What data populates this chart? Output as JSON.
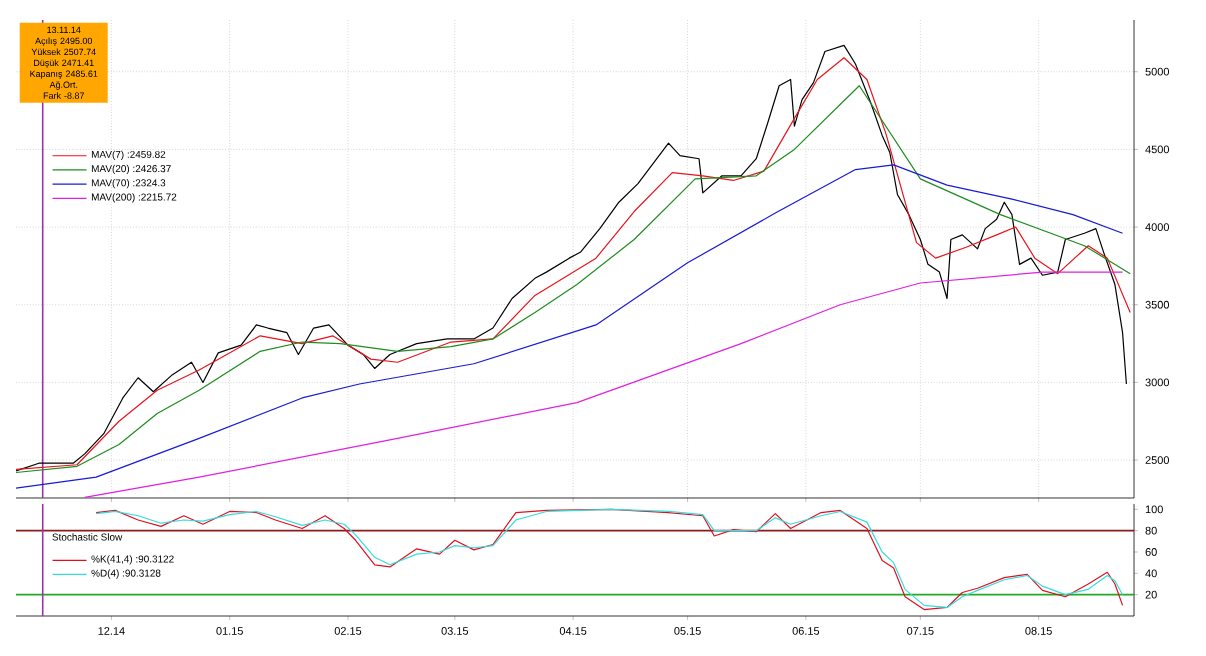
{
  "chart_data": [
    {
      "type": "line",
      "annotations": [
        "13.11.14",
        "Açılış 2495.00",
        "Yüksek 2507.74",
        "Düşük 2471.41",
        "Kapanış 2485.61",
        "Ağ.Ort.",
        "Fark -8.87"
      ],
      "xlim": [
        "2014-11-06",
        "2015-08-26"
      ],
      "ylim": [
        2256,
        5333
      ],
      "xticks": [
        {
          "value": "2014-12-01",
          "label": null
        },
        {
          "value": "2015-01-01",
          "label": null
        },
        {
          "value": "2015-02-01",
          "label": null
        },
        {
          "value": "2015-03-01",
          "label": null
        },
        {
          "value": "2015-04-01",
          "label": null
        },
        {
          "value": "2015-05-01",
          "label": null
        },
        {
          "value": "2015-06-01",
          "label": null
        },
        {
          "value": "2015-07-01",
          "label": null
        },
        {
          "value": "2015-08-01",
          "label": null
        }
      ],
      "yticks": [
        2500,
        3000,
        3500,
        4000,
        4500,
        5000
      ],
      "tick_labels": "y",
      "grid": true,
      "legend": "top left",
      "marker": "none",
      "ref_lines": [
        {
          "axis": "x",
          "value": "2014-11-13",
          "color": "#9933aa"
        }
      ],
      "series": [
        {
          "color": "#000000",
          "x": [
            "2014-11-06",
            "2014-11-12",
            "2014-11-21",
            "2014-11-24",
            "2014-11-29",
            "2014-12-04",
            "2014-12-08",
            "2014-12-12",
            "2014-12-17",
            "2014-12-22",
            "2014-12-25",
            "2014-12-29",
            "2015-01-04",
            "2015-01-08",
            "2015-01-11",
            "2015-01-16",
            "2015-01-19",
            "2015-01-23",
            "2015-01-27",
            "2015-02-01",
            "2015-02-05",
            "2015-02-08",
            "2015-02-12",
            "2015-02-19",
            "2015-02-27",
            "2015-03-06",
            "2015-03-11",
            "2015-03-16",
            "2015-03-22",
            "2015-03-25",
            "2015-03-31",
            "2015-04-03",
            "2015-04-08",
            "2015-04-13",
            "2015-04-18",
            "2015-04-22",
            "2015-04-26",
            "2015-04-29",
            "2015-05-04",
            "2015-05-05",
            "2015-05-10",
            "2015-05-15",
            "2015-05-19",
            "2015-05-22",
            "2015-05-25",
            "2015-05-28",
            "2015-05-29",
            "2015-05-31",
            "2015-06-03",
            "2015-06-06",
            "2015-06-11",
            "2015-06-14",
            "2015-06-18",
            "2015-06-21",
            "2015-06-23",
            "2015-06-25",
            "2015-06-28",
            "2015-07-01",
            "2015-07-03",
            "2015-07-06",
            "2015-07-08",
            "2015-07-09",
            "2015-07-12",
            "2015-07-16",
            "2015-07-18",
            "2015-07-21",
            "2015-07-23",
            "2015-07-25",
            "2015-07-27",
            "2015-07-30",
            "2015-08-02",
            "2015-08-06",
            "2015-08-08",
            "2015-08-13",
            "2015-08-16",
            "2015-08-18",
            "2015-08-21",
            "2015-08-23",
            "2015-08-24"
          ],
          "values": [
            2430,
            2480,
            2480,
            2540,
            2670,
            2900,
            3030,
            2940,
            3050,
            3130,
            3000,
            3190,
            3240,
            3370,
            3350,
            3320,
            3180,
            3350,
            3370,
            3240,
            3180,
            3090,
            3180,
            3250,
            3280,
            3280,
            3350,
            3540,
            3670,
            3710,
            3800,
            3840,
            3990,
            4160,
            4280,
            4410,
            4540,
            4460,
            4440,
            4220,
            4330,
            4330,
            4440,
            4670,
            4910,
            4950,
            4650,
            4820,
            4930,
            5130,
            5170,
            5050,
            4800,
            4590,
            4480,
            4210,
            4080,
            3920,
            3760,
            3710,
            3540,
            3920,
            3950,
            3860,
            3990,
            4050,
            4160,
            4080,
            3760,
            3800,
            3690,
            3710,
            3920,
            3960,
            3990,
            3840,
            3630,
            3320,
            2990
          ]
        },
        {
          "name": "MAV(7) :2459.82",
          "color": "#e8141c",
          "x": [
            "2014-11-06",
            "2014-11-22",
            "2014-12-03",
            "2014-12-13",
            "2014-12-24",
            "2015-01-09",
            "2015-01-20",
            "2015-01-28",
            "2015-02-07",
            "2015-02-14",
            "2015-02-28",
            "2015-03-11",
            "2015-03-22",
            "2015-04-07",
            "2015-04-17",
            "2015-04-27",
            "2015-05-05",
            "2015-05-13",
            "2015-05-21",
            "2015-05-29",
            "2015-06-04",
            "2015-06-11",
            "2015-06-17",
            "2015-06-22",
            "2015-06-30",
            "2015-07-05",
            "2015-07-13",
            "2015-07-21",
            "2015-07-26",
            "2015-07-31",
            "2015-08-06",
            "2015-08-14",
            "2015-08-19",
            "2015-08-25"
          ],
          "values": [
            2440,
            2470,
            2750,
            2950,
            3080,
            3300,
            3250,
            3300,
            3150,
            3130,
            3260,
            3280,
            3560,
            3800,
            4100,
            4350,
            4330,
            4300,
            4360,
            4700,
            4950,
            5090,
            4950,
            4600,
            3900,
            3800,
            3870,
            3950,
            4000,
            3800,
            3700,
            3880,
            3800,
            3450
          ]
        },
        {
          "name": "MAV(20) :2426.37",
          "color": "#1e8c1e",
          "x": [
            "2014-11-06",
            "2014-11-22",
            "2014-12-03",
            "2014-12-13",
            "2014-12-24",
            "2015-01-09",
            "2015-01-20",
            "2015-01-30",
            "2015-02-14",
            "2015-02-28",
            "2015-03-11",
            "2015-03-22",
            "2015-04-02",
            "2015-04-17",
            "2015-05-03",
            "2015-05-19",
            "2015-05-29",
            "2015-06-15",
            "2015-07-01",
            "2015-07-22",
            "2015-08-13",
            "2015-08-25"
          ],
          "values": [
            2420,
            2460,
            2600,
            2800,
            2950,
            3200,
            3260,
            3250,
            3200,
            3230,
            3280,
            3450,
            3630,
            3920,
            4310,
            4330,
            4500,
            4910,
            4310,
            4080,
            3880,
            3700
          ]
        },
        {
          "name": "MAV(70) :2324.3",
          "color": "#1a1ad6",
          "x": [
            "2014-11-06",
            "2014-11-27",
            "2014-12-24",
            "2015-01-20",
            "2015-02-04",
            "2015-03-06",
            "2015-04-07",
            "2015-05-01",
            "2015-05-24",
            "2015-06-14",
            "2015-06-24",
            "2015-07-08",
            "2015-07-25",
            "2015-08-10",
            "2015-08-23"
          ],
          "values": [
            2320,
            2390,
            2640,
            2900,
            2990,
            3120,
            3370,
            3770,
            4090,
            4370,
            4400,
            4270,
            4180,
            4080,
            3960
          ]
        },
        {
          "name": "MAV(200) :2215.72",
          "color": "#e020e0",
          "x": [
            "2014-11-24",
            "2014-12-24",
            "2015-02-14",
            "2015-04-02",
            "2015-05-15",
            "2015-06-10",
            "2015-07-01",
            "2015-08-02",
            "2015-08-23"
          ],
          "values": [
            2260,
            2390,
            2640,
            2870,
            3250,
            3500,
            3640,
            3710,
            3710
          ]
        }
      ]
    },
    {
      "type": "line",
      "title": "Stochastic Slow",
      "xlim": [
        "2014-11-06",
        "2015-08-26"
      ],
      "ylim": [
        0,
        105
      ],
      "xticks": [
        {
          "value": "2014-12-01",
          "label": "12.14"
        },
        {
          "value": "2015-01-01",
          "label": "01.15"
        },
        {
          "value": "2015-02-01",
          "label": "02.15"
        },
        {
          "value": "2015-03-01",
          "label": "03.15"
        },
        {
          "value": "2015-04-01",
          "label": "04.15"
        },
        {
          "value": "2015-05-01",
          "label": "05.15"
        },
        {
          "value": "2015-06-01",
          "label": "06.15"
        },
        {
          "value": "2015-07-01",
          "label": "07.15"
        },
        {
          "value": "2015-08-01",
          "label": "08.15"
        }
      ],
      "yticks": [
        20,
        40,
        60,
        80,
        100
      ],
      "legend": "left",
      "marker": "none",
      "ref_lines": [
        {
          "axis": "y",
          "value": 80,
          "color": "#8b1a1a"
        },
        {
          "axis": "y",
          "value": 20,
          "color": "#22aa22"
        },
        {
          "axis": "x",
          "value": "2014-11-13",
          "color": "#9933aa"
        }
      ],
      "series": [
        {
          "name": "%K(41,4) :90.3122",
          "color": "#e01020",
          "x": [
            "2014-11-27",
            "2014-12-02",
            "2014-12-08",
            "2014-12-14",
            "2014-12-20",
            "2014-12-25",
            "2015-01-01",
            "2015-01-08",
            "2015-01-13",
            "2015-01-20",
            "2015-01-26",
            "2015-01-31",
            "2015-02-03",
            "2015-02-08",
            "2015-02-12",
            "2015-02-19",
            "2015-02-25",
            "2015-03-01",
            "2015-03-06",
            "2015-03-11",
            "2015-03-17",
            "2015-03-25",
            "2015-04-11",
            "2015-04-26",
            "2015-05-05",
            "2015-05-08",
            "2015-05-13",
            "2015-05-19",
            "2015-05-24",
            "2015-05-28",
            "2015-06-05",
            "2015-06-10",
            "2015-06-17",
            "2015-06-21",
            "2015-06-24",
            "2015-06-27",
            "2015-07-02",
            "2015-07-08",
            "2015-07-12",
            "2015-07-16",
            "2015-07-23",
            "2015-07-29",
            "2015-08-02",
            "2015-08-08",
            "2015-08-14",
            "2015-08-19",
            "2015-08-21",
            "2015-08-23"
          ],
          "values": [
            97,
            99,
            90,
            84,
            94,
            86,
            98,
            97,
            90,
            82,
            94,
            82,
            71,
            48,
            46,
            63,
            58,
            71,
            62,
            67,
            97,
            99,
            100,
            97,
            94,
            75,
            81,
            79,
            96,
            82,
            97,
            99,
            82,
            52,
            45,
            18,
            6,
            8,
            22,
            26,
            36,
            39,
            24,
            18,
            30,
            41,
            30,
            10
          ]
        },
        {
          "name": "%D(4) :90.3128",
          "color": "#33dddd",
          "x": [
            "2014-11-27",
            "2014-12-02",
            "2014-12-08",
            "2014-12-14",
            "2014-12-20",
            "2014-12-25",
            "2015-01-01",
            "2015-01-08",
            "2015-01-13",
            "2015-01-20",
            "2015-01-26",
            "2015-01-31",
            "2015-02-03",
            "2015-02-08",
            "2015-02-12",
            "2015-02-19",
            "2015-02-25",
            "2015-03-01",
            "2015-03-06",
            "2015-03-11",
            "2015-03-17",
            "2015-03-25",
            "2015-04-11",
            "2015-04-26",
            "2015-05-05",
            "2015-05-08",
            "2015-05-13",
            "2015-05-19",
            "2015-05-24",
            "2015-05-28",
            "2015-06-05",
            "2015-06-10",
            "2015-06-17",
            "2015-06-21",
            "2015-06-24",
            "2015-06-27",
            "2015-07-02",
            "2015-07-08",
            "2015-07-12",
            "2015-07-16",
            "2015-07-23",
            "2015-07-29",
            "2015-08-02",
            "2015-08-08",
            "2015-08-14",
            "2015-08-19",
            "2015-08-21",
            "2015-08-23"
          ],
          "values": [
            96,
            98,
            94,
            87,
            90,
            89,
            95,
            98,
            93,
            85,
            90,
            86,
            76,
            55,
            48,
            58,
            60,
            66,
            64,
            66,
            90,
            98,
            100,
            98,
            95,
            80,
            80,
            80,
            92,
            86,
            94,
            98,
            88,
            60,
            50,
            25,
            10,
            8,
            18,
            24,
            34,
            38,
            28,
            20,
            25,
            38,
            33,
            20
          ]
        }
      ]
    }
  ]
}
